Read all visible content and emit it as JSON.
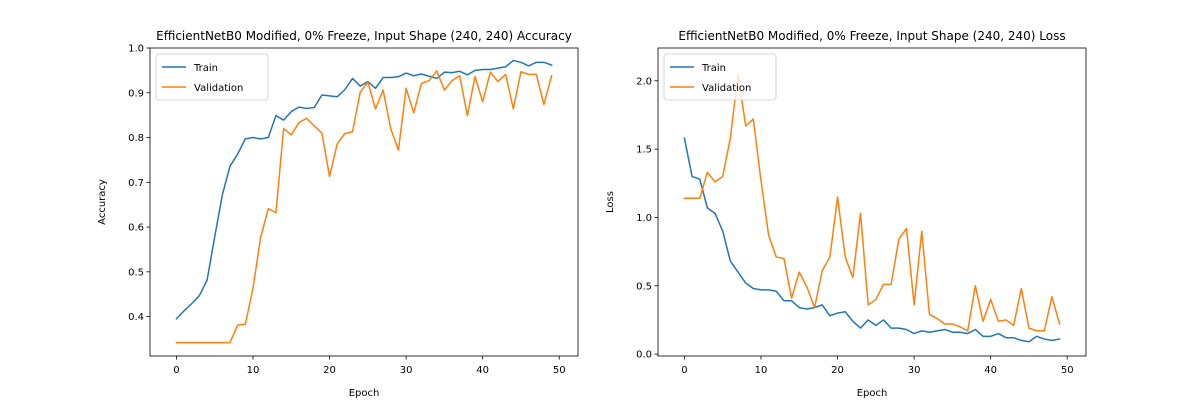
{
  "chart_data": [
    {
      "type": "line",
      "title": "EfficientNetB0 Modified, 0% Freeze, Input Shape (240, 240) Accuracy",
      "xlabel": "Epoch",
      "ylabel": "Accuracy",
      "xlim": [
        -3.45,
        52.45
      ],
      "ylim": [
        0.312,
        1.0
      ],
      "xticks": [
        0,
        10,
        20,
        30,
        40,
        50
      ],
      "yticks": [
        0.4,
        0.5,
        0.6,
        0.7,
        0.8,
        0.9,
        1.0
      ],
      "ytick_labels": [
        "0.4",
        "0.5",
        "0.6",
        "0.7",
        "0.8",
        "0.9",
        "1.0"
      ],
      "legend_position": "top-left",
      "grid": false,
      "x": [
        0,
        1,
        2,
        3,
        4,
        5,
        6,
        7,
        8,
        9,
        10,
        11,
        12,
        13,
        14,
        15,
        16,
        17,
        18,
        19,
        20,
        21,
        22,
        23,
        24,
        25,
        26,
        27,
        28,
        29,
        30,
        31,
        32,
        33,
        34,
        35,
        36,
        37,
        38,
        39,
        40,
        41,
        42,
        43,
        44,
        45,
        46,
        47,
        48,
        49
      ],
      "series": [
        {
          "name": "Train",
          "color": "#1f77b4",
          "values": [
            0.395,
            0.413,
            0.429,
            0.447,
            0.481,
            0.578,
            0.672,
            0.736,
            0.763,
            0.797,
            0.8,
            0.797,
            0.8,
            0.849,
            0.839,
            0.858,
            0.868,
            0.865,
            0.867,
            0.895,
            0.893,
            0.891,
            0.907,
            0.932,
            0.915,
            0.925,
            0.91,
            0.934,
            0.934,
            0.936,
            0.944,
            0.938,
            0.942,
            0.937,
            0.932,
            0.946,
            0.945,
            0.948,
            0.94,
            0.95,
            0.952,
            0.952,
            0.955,
            0.958,
            0.972,
            0.968,
            0.96,
            0.968,
            0.968,
            0.962
          ]
        },
        {
          "name": "Validation",
          "color": "#ff7f0e",
          "values": [
            0.342,
            0.342,
            0.342,
            0.342,
            0.342,
            0.342,
            0.342,
            0.342,
            0.381,
            0.383,
            0.463,
            0.577,
            0.641,
            0.632,
            0.82,
            0.806,
            0.833,
            0.843,
            0.826,
            0.81,
            0.713,
            0.786,
            0.809,
            0.813,
            0.901,
            0.924,
            0.864,
            0.906,
            0.819,
            0.772,
            0.91,
            0.855,
            0.921,
            0.927,
            0.949,
            0.906,
            0.927,
            0.938,
            0.849,
            0.936,
            0.88,
            0.946,
            0.925,
            0.941,
            0.864,
            0.947,
            0.941,
            0.941,
            0.874,
            0.938
          ]
        }
      ]
    },
    {
      "type": "line",
      "title": "EfficientNetB0 Modified, 0% Freeze, Input Shape (240, 240) Loss",
      "xlabel": "Epoch",
      "ylabel": "Loss",
      "xlim": [
        -3.45,
        52.45
      ],
      "ylim": [
        -0.014,
        2.24
      ],
      "xticks": [
        0,
        10,
        20,
        30,
        40,
        50
      ],
      "yticks": [
        0.0,
        0.5,
        1.0,
        1.5,
        2.0
      ],
      "ytick_labels": [
        "0.0",
        "0.5",
        "1.0",
        "1.5",
        "2.0"
      ],
      "legend_position": "top-left",
      "grid": false,
      "x": [
        0,
        1,
        2,
        3,
        4,
        5,
        6,
        7,
        8,
        9,
        10,
        11,
        12,
        13,
        14,
        15,
        16,
        17,
        18,
        19,
        20,
        21,
        22,
        23,
        24,
        25,
        26,
        27,
        28,
        29,
        30,
        31,
        32,
        33,
        34,
        35,
        36,
        37,
        38,
        39,
        40,
        41,
        42,
        43,
        44,
        45,
        46,
        47,
        48,
        49
      ],
      "series": [
        {
          "name": "Train",
          "color": "#1f77b4",
          "values": [
            1.58,
            1.3,
            1.28,
            1.07,
            1.03,
            0.9,
            0.68,
            0.6,
            0.52,
            0.48,
            0.47,
            0.47,
            0.46,
            0.39,
            0.39,
            0.34,
            0.33,
            0.34,
            0.36,
            0.28,
            0.3,
            0.31,
            0.24,
            0.19,
            0.25,
            0.21,
            0.25,
            0.19,
            0.19,
            0.18,
            0.15,
            0.17,
            0.16,
            0.17,
            0.18,
            0.16,
            0.16,
            0.15,
            0.18,
            0.13,
            0.13,
            0.15,
            0.12,
            0.12,
            0.1,
            0.09,
            0.13,
            0.11,
            0.1,
            0.11
          ]
        },
        {
          "name": "Validation",
          "color": "#ff7f0e",
          "values": [
            1.14,
            1.14,
            1.14,
            1.33,
            1.26,
            1.3,
            1.58,
            2.05,
            1.67,
            1.72,
            1.27,
            0.87,
            0.71,
            0.7,
            0.41,
            0.6,
            0.49,
            0.34,
            0.61,
            0.71,
            1.15,
            0.71,
            0.56,
            1.03,
            0.36,
            0.4,
            0.51,
            0.51,
            0.84,
            0.92,
            0.36,
            0.9,
            0.29,
            0.26,
            0.22,
            0.22,
            0.2,
            0.17,
            0.5,
            0.24,
            0.4,
            0.24,
            0.25,
            0.21,
            0.48,
            0.19,
            0.17,
            0.17,
            0.42,
            0.22
          ]
        }
      ]
    }
  ]
}
